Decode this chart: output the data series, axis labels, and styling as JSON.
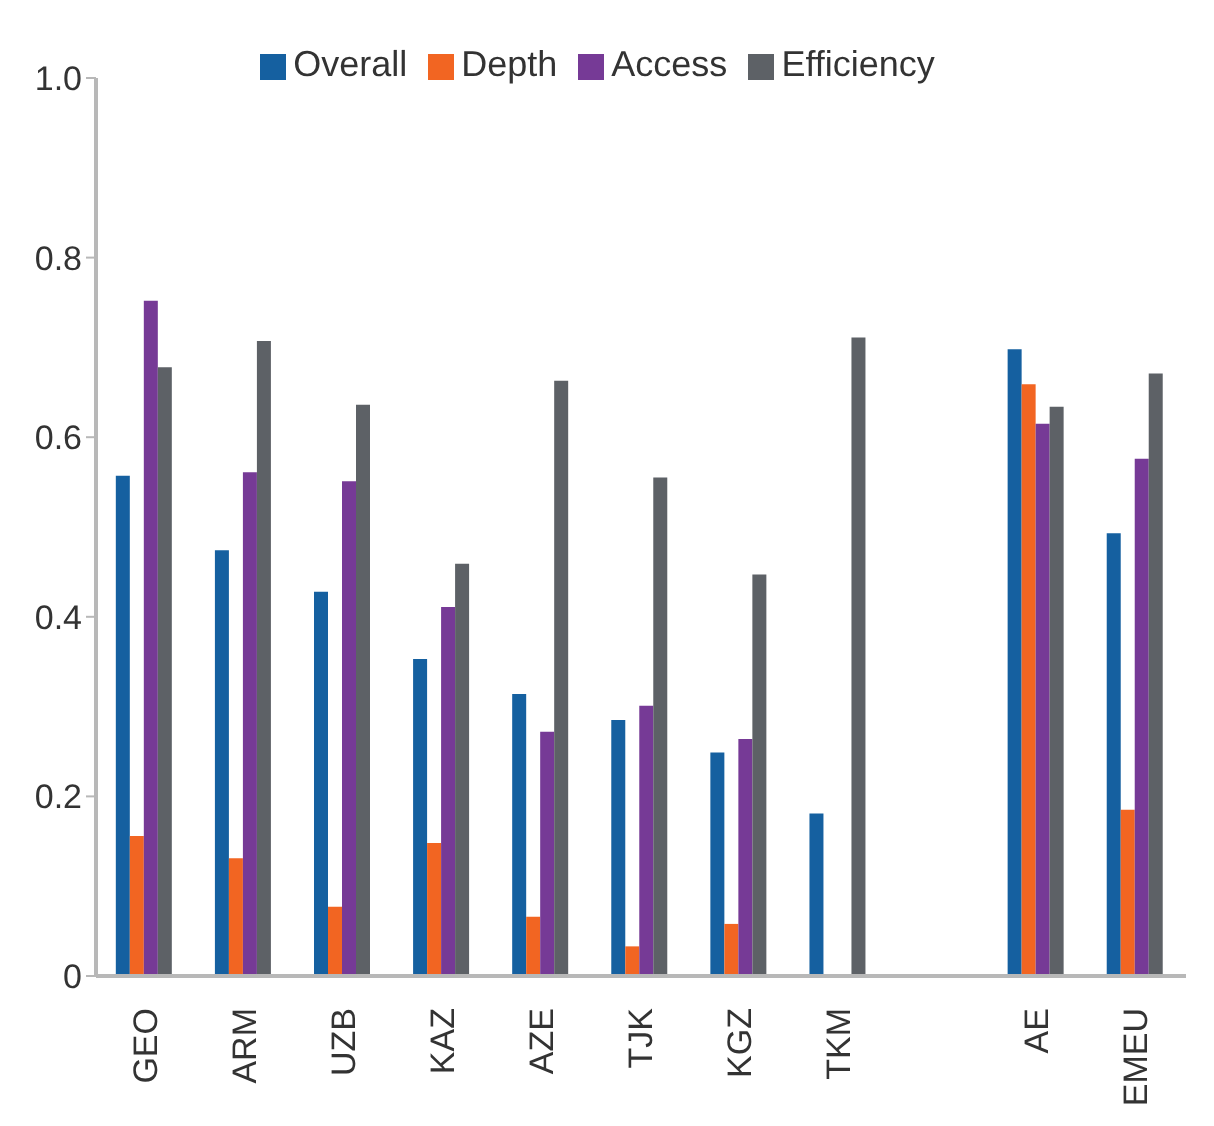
{
  "chart_data": {
    "type": "bar",
    "categories": [
      "GEO",
      "ARM",
      "UZB",
      "KAZ",
      "AZE",
      "TJK",
      "KGZ",
      "TKM",
      null,
      "AE",
      "EMEU"
    ],
    "series": [
      {
        "name": "Overall",
        "color": "#1560a0",
        "values": [
          0.557,
          0.474,
          0.428,
          0.353,
          0.314,
          0.285,
          0.249,
          0.181,
          null,
          0.698,
          0.493
        ]
      },
      {
        "name": "Depth",
        "color": "#f26522",
        "values": [
          0.156,
          0.131,
          0.077,
          0.148,
          0.066,
          0.033,
          0.058,
          null,
          null,
          0.659,
          0.185
        ]
      },
      {
        "name": "Access",
        "color": "#763a96",
        "values": [
          0.752,
          0.561,
          0.551,
          0.411,
          0.272,
          0.301,
          0.264,
          null,
          null,
          0.615,
          0.576
        ]
      },
      {
        "name": "Efficiency",
        "color": "#5d6166",
        "values": [
          0.678,
          0.707,
          0.636,
          0.459,
          0.663,
          0.555,
          0.447,
          0.711,
          null,
          0.634,
          0.671
        ]
      }
    ],
    "ylim": [
      0,
      1.0
    ],
    "yticks": [
      {
        "value": 0,
        "label": "0"
      },
      0.2,
      0.4,
      0.6,
      0.8,
      {
        "value": 1.0,
        "label": "1.0"
      }
    ],
    "grid": false,
    "legend": "top"
  }
}
